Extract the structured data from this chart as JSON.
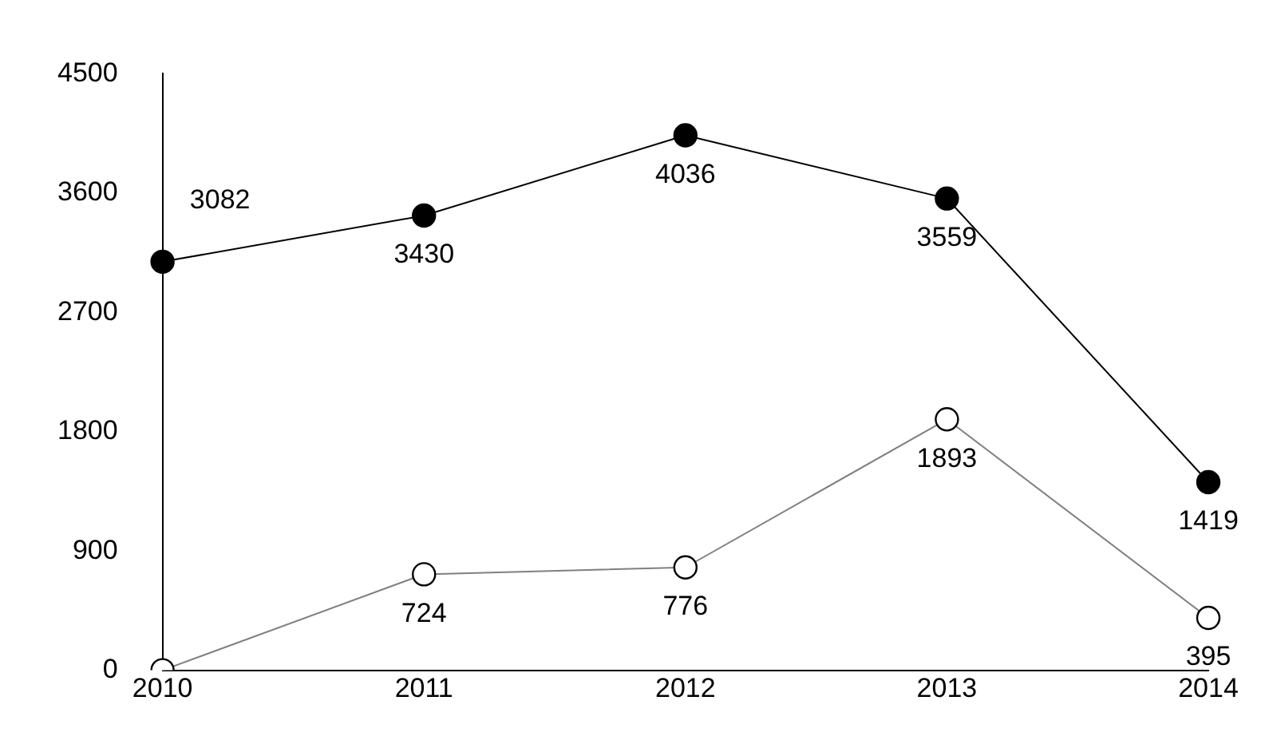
{
  "chart_data": {
    "type": "line",
    "categories": [
      "2010",
      "2011",
      "2012",
      "2013",
      "2014"
    ],
    "series": [
      {
        "color": "#000000",
        "values": [
          3082,
          3430,
          4036,
          3559,
          1419
        ],
        "value_labels": [
          "3082",
          "3430",
          "4036",
          "3559",
          "1419"
        ]
      },
      {
        "color": "#7f7f7f",
        "values": [
          0,
          724,
          776,
          1893,
          395
        ],
        "value_labels": [
          null,
          "724",
          "776",
          "1893",
          "395"
        ]
      }
    ],
    "ylim": [
      0,
      4500
    ],
    "yticks": [
      0,
      900,
      1800,
      2700,
      3600,
      4500
    ],
    "grid": false,
    "legend": false,
    "marker": "circle",
    "line_style": "solid"
  }
}
